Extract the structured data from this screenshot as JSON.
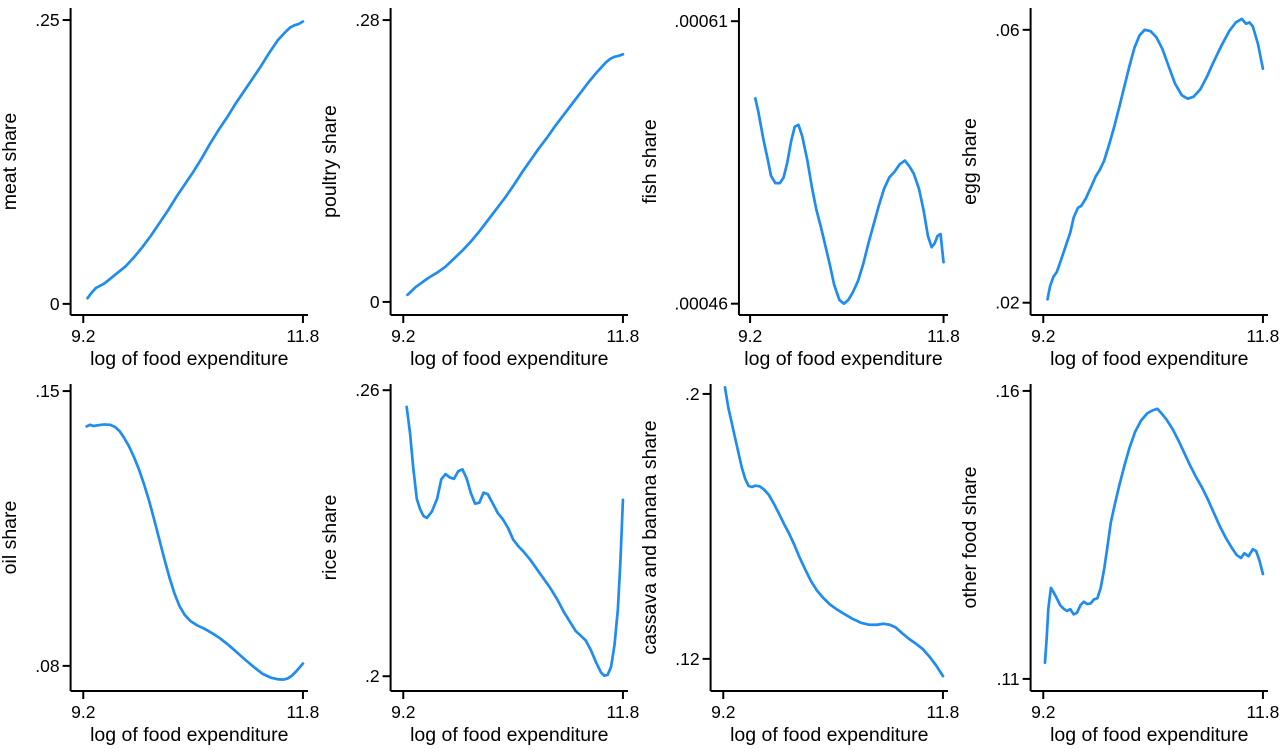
{
  "figure": {
    "background": "#ffffff",
    "columns": 4,
    "rows": 2
  },
  "style": {
    "line_color": "#1f8cf0",
    "axis_color": "#000000",
    "text_color": "#000000"
  },
  "chart_data": [
    {
      "type": "line",
      "title": "",
      "ylabel": "meat share",
      "xlabel": "log of food expenditure",
      "grid": false,
      "legend": "none",
      "xlim": [
        9.05,
        11.86
      ],
      "ylim": [
        -0.0098,
        0.2606
      ],
      "xticks": [
        {
          "v": 9.2,
          "label": "9.2"
        },
        {
          "v": 11.8,
          "label": "11.8"
        }
      ],
      "yticks": [
        {
          "v": 0,
          "label": "0"
        },
        {
          "v": 0.25,
          "label": ".25"
        }
      ],
      "x": [
        9.25,
        9.3,
        9.35,
        9.4,
        9.45,
        9.5,
        9.6,
        9.7,
        9.8,
        9.9,
        10.0,
        10.1,
        10.2,
        10.3,
        10.4,
        10.5,
        10.6,
        10.7,
        10.8,
        10.9,
        11.0,
        11.1,
        11.2,
        11.3,
        11.4,
        11.5,
        11.6,
        11.65,
        11.7,
        11.75,
        11.8
      ],
      "y": [
        0.005,
        0.01,
        0.014,
        0.016,
        0.018,
        0.021,
        0.027,
        0.033,
        0.041,
        0.05,
        0.06,
        0.071,
        0.082,
        0.094,
        0.105,
        0.116,
        0.128,
        0.141,
        0.153,
        0.164,
        0.176,
        0.187,
        0.198,
        0.209,
        0.221,
        0.232,
        0.24,
        0.2435,
        0.2455,
        0.2465,
        0.2487
      ]
    },
    {
      "type": "line",
      "title": "",
      "ylabel": "poultry share",
      "xlabel": "log of food expenditure",
      "grid": false,
      "legend": "none",
      "xlim": [
        9.05,
        11.86
      ],
      "ylim": [
        -0.013,
        0.292
      ],
      "xticks": [
        {
          "v": 9.2,
          "label": "9.2"
        },
        {
          "v": 11.8,
          "label": "11.8"
        }
      ],
      "yticks": [
        {
          "v": 0,
          "label": "0"
        },
        {
          "v": 0.28,
          "label": ".28"
        }
      ],
      "x": [
        9.25,
        9.3,
        9.35,
        9.4,
        9.45,
        9.5,
        9.6,
        9.7,
        9.8,
        9.9,
        10.0,
        10.1,
        10.2,
        10.3,
        10.4,
        10.5,
        10.6,
        10.7,
        10.8,
        10.9,
        11.0,
        11.1,
        11.2,
        11.3,
        11.4,
        11.5,
        11.6,
        11.65,
        11.7,
        11.75,
        11.8
      ],
      "y": [
        0.007,
        0.011,
        0.015,
        0.018,
        0.021,
        0.024,
        0.029,
        0.035,
        0.043,
        0.051,
        0.06,
        0.07,
        0.081,
        0.092,
        0.103,
        0.115,
        0.128,
        0.14,
        0.152,
        0.163,
        0.175,
        0.186,
        0.197,
        0.208,
        0.219,
        0.229,
        0.238,
        0.2415,
        0.2435,
        0.2445,
        0.246
      ]
    },
    {
      "type": "line",
      "title": "",
      "ylabel": "fish share",
      "xlabel": "log of food expenditure",
      "grid": false,
      "legend": "none",
      "xlim": [
        9.05,
        11.86
      ],
      "ylim": [
        0.000454,
        0.000617
      ],
      "xticks": [
        {
          "v": 9.2,
          "label": "9.2"
        },
        {
          "v": 11.8,
          "label": "11.8"
        }
      ],
      "yticks": [
        {
          "v": 0.00046,
          "label": ".00046"
        },
        {
          "v": 0.00061,
          "label": ".00061"
        }
      ],
      "x": [
        9.27,
        9.31,
        9.38,
        9.44,
        9.48,
        9.54,
        9.6,
        9.65,
        9.7,
        9.75,
        9.8,
        9.85,
        9.9,
        9.97,
        10.03,
        10.09,
        10.15,
        10.21,
        10.27,
        10.33,
        10.4,
        10.46,
        10.52,
        10.58,
        10.65,
        10.72,
        10.79,
        10.86,
        10.93,
        11.0,
        11.07,
        11.14,
        11.21,
        11.28,
        11.34,
        11.4,
        11.47,
        11.53,
        11.59,
        11.64,
        11.68,
        11.72,
        11.76,
        11.8
      ],
      "y": [
        0.000569,
        0.000562,
        0.000547,
        0.000536,
        0.000528,
        0.000524,
        0.000524,
        0.000527,
        0.000535,
        0.000546,
        0.000554,
        0.000555,
        0.000549,
        0.000536,
        0.000522,
        0.00051,
        0.000501,
        0.000491,
        0.000481,
        0.00047,
        0.000462,
        0.00046,
        0.000462,
        0.000466,
        0.000472,
        0.000481,
        0.000492,
        0.000502,
        0.000512,
        0.000521,
        0.000527,
        0.00053,
        0.000534,
        0.000536,
        0.000533,
        0.000529,
        0.000521,
        0.00051,
        0.000496,
        0.00049,
        0.000492,
        0.000496,
        0.000497,
        0.000482
      ]
    },
    {
      "type": "line",
      "title": "",
      "ylabel": "egg share",
      "xlabel": "log of food expenditure",
      "grid": false,
      "legend": "none",
      "xlim": [
        9.05,
        11.86
      ],
      "ylim": [
        0.0182,
        0.0632
      ],
      "xticks": [
        {
          "v": 9.2,
          "label": "9.2"
        },
        {
          "v": 11.8,
          "label": "11.8"
        }
      ],
      "yticks": [
        {
          "v": 0.02,
          "label": ".02"
        },
        {
          "v": 0.06,
          "label": ".06"
        }
      ],
      "x": [
        9.25,
        9.28,
        9.32,
        9.36,
        9.4,
        9.46,
        9.52,
        9.56,
        9.61,
        9.65,
        9.7,
        9.76,
        9.82,
        9.87,
        9.92,
        9.98,
        10.04,
        10.1,
        10.16,
        10.22,
        10.28,
        10.34,
        10.4,
        10.47,
        10.54,
        10.61,
        10.68,
        10.76,
        10.84,
        10.91,
        10.98,
        11.06,
        11.14,
        11.22,
        11.31,
        11.4,
        11.48,
        11.55,
        11.6,
        11.64,
        11.68,
        11.74,
        11.8
      ],
      "y": [
        0.0205,
        0.0224,
        0.0238,
        0.0245,
        0.0259,
        0.0281,
        0.0303,
        0.0325,
        0.0339,
        0.0342,
        0.0352,
        0.0368,
        0.0385,
        0.0395,
        0.0408,
        0.0432,
        0.0458,
        0.0487,
        0.0517,
        0.0547,
        0.0574,
        0.0592,
        0.06,
        0.0598,
        0.0589,
        0.0572,
        0.0548,
        0.0521,
        0.0504,
        0.0499,
        0.0502,
        0.0513,
        0.0532,
        0.0554,
        0.0577,
        0.0598,
        0.0611,
        0.0616,
        0.0609,
        0.0611,
        0.0605,
        0.058,
        0.0543
      ]
    },
    {
      "type": "line",
      "title": "",
      "ylabel": "oil share",
      "xlabel": "log of food expenditure",
      "grid": false,
      "legend": "none",
      "xlim": [
        9.05,
        11.86
      ],
      "ylim": [
        0.0736,
        0.1518
      ],
      "xticks": [
        {
          "v": 9.2,
          "label": "9.2"
        },
        {
          "v": 11.8,
          "label": "11.8"
        }
      ],
      "yticks": [
        {
          "v": 0.08,
          "label": ".08"
        },
        {
          "v": 0.15,
          "label": ".15"
        }
      ],
      "x": [
        9.24,
        9.28,
        9.32,
        9.38,
        9.45,
        9.52,
        9.58,
        9.63,
        9.68,
        9.74,
        9.8,
        9.86,
        9.92,
        9.98,
        10.04,
        10.1,
        10.16,
        10.22,
        10.28,
        10.34,
        10.4,
        10.47,
        10.55,
        10.63,
        10.72,
        10.82,
        10.92,
        11.02,
        11.12,
        11.22,
        11.32,
        11.42,
        11.5,
        11.57,
        11.62,
        11.67,
        11.72,
        11.76,
        11.8
      ],
      "y": [
        0.141,
        0.1414,
        0.1411,
        0.1413,
        0.1415,
        0.1414,
        0.1408,
        0.1398,
        0.1382,
        0.136,
        0.1332,
        0.13,
        0.1262,
        0.122,
        0.1172,
        0.1122,
        0.1072,
        0.1025,
        0.0984,
        0.0952,
        0.093,
        0.0914,
        0.0903,
        0.0895,
        0.0884,
        0.087,
        0.0853,
        0.0834,
        0.0815,
        0.0797,
        0.078,
        0.077,
        0.0766,
        0.0765,
        0.0768,
        0.0775,
        0.0786,
        0.0796,
        0.0806
      ]
    },
    {
      "type": "line",
      "title": "",
      "ylabel": "rice share",
      "xlabel": "log of food expenditure",
      "grid": false,
      "legend": "none",
      "xlim": [
        9.05,
        11.86
      ],
      "ylim": [
        0.1969,
        0.2613
      ],
      "xticks": [
        {
          "v": 9.2,
          "label": "9.2"
        },
        {
          "v": 11.8,
          "label": "11.8"
        }
      ],
      "yticks": [
        {
          "v": 0.2,
          "label": ".2"
        },
        {
          "v": 0.26,
          "label": ".26"
        }
      ],
      "x": [
        9.24,
        9.28,
        9.32,
        9.36,
        9.4,
        9.44,
        9.48,
        9.54,
        9.6,
        9.65,
        9.7,
        9.75,
        9.8,
        9.85,
        9.9,
        9.95,
        10.0,
        10.05,
        10.1,
        10.15,
        10.2,
        10.26,
        10.32,
        10.38,
        10.44,
        10.5,
        10.56,
        10.62,
        10.7,
        10.78,
        10.86,
        10.94,
        11.02,
        11.1,
        11.17,
        11.24,
        11.3,
        11.36,
        11.42,
        11.48,
        11.54,
        11.58,
        11.62,
        11.66,
        11.7,
        11.74,
        11.77,
        11.8
      ],
      "y": [
        0.2565,
        0.251,
        0.2434,
        0.2372,
        0.235,
        0.2336,
        0.2332,
        0.2346,
        0.2372,
        0.2413,
        0.2424,
        0.2417,
        0.2414,
        0.243,
        0.2434,
        0.2415,
        0.2384,
        0.2362,
        0.2364,
        0.2385,
        0.2382,
        0.2362,
        0.2342,
        0.2329,
        0.2311,
        0.2287,
        0.2273,
        0.2262,
        0.2245,
        0.2225,
        0.2205,
        0.2185,
        0.2162,
        0.2135,
        0.2115,
        0.2095,
        0.2085,
        0.2075,
        0.2055,
        0.203,
        0.2008,
        0.2001,
        0.2003,
        0.202,
        0.2065,
        0.214,
        0.224,
        0.237
      ]
    },
    {
      "type": "line",
      "title": "",
      "ylabel": "cassava and banana share",
      "xlabel": "log of food expenditure",
      "grid": false,
      "legend": "none",
      "xlim": [
        9.05,
        11.86
      ],
      "ylim": [
        0.1103,
        0.203
      ],
      "xticks": [
        {
          "v": 9.2,
          "label": "9.2"
        },
        {
          "v": 11.8,
          "label": "11.8"
        }
      ],
      "yticks": [
        {
          "v": 0.12,
          "label": ".12"
        },
        {
          "v": 0.2,
          "label": ".2"
        }
      ],
      "x": [
        9.22,
        9.26,
        9.3,
        9.34,
        9.38,
        9.42,
        9.46,
        9.5,
        9.54,
        9.58,
        9.63,
        9.68,
        9.74,
        9.8,
        9.86,
        9.92,
        9.98,
        10.04,
        10.1,
        10.17,
        10.24,
        10.31,
        10.38,
        10.46,
        10.54,
        10.63,
        10.73,
        10.83,
        10.93,
        11.02,
        11.1,
        11.17,
        11.24,
        11.32,
        11.4,
        11.48,
        11.56,
        11.64,
        11.72,
        11.8
      ],
      "y": [
        0.202,
        0.1958,
        0.1913,
        0.1867,
        0.1822,
        0.1777,
        0.1743,
        0.1722,
        0.1719,
        0.1723,
        0.1721,
        0.1712,
        0.1695,
        0.1668,
        0.1638,
        0.1607,
        0.1578,
        0.1545,
        0.1508,
        0.147,
        0.1434,
        0.1406,
        0.1385,
        0.1365,
        0.135,
        0.1336,
        0.1321,
        0.1309,
        0.1303,
        0.1303,
        0.1306,
        0.1303,
        0.1295,
        0.1277,
        0.126,
        0.1246,
        0.123,
        0.1207,
        0.118,
        0.1148
      ]
    },
    {
      "type": "line",
      "title": "",
      "ylabel": "other food share",
      "xlabel": "log of food expenditure",
      "grid": false,
      "legend": "none",
      "xlim": [
        9.05,
        11.86
      ],
      "ylim": [
        0.1079,
        0.1612
      ],
      "xticks": [
        {
          "v": 9.2,
          "label": "9.2"
        },
        {
          "v": 11.8,
          "label": "11.8"
        }
      ],
      "yticks": [
        {
          "v": 0.11,
          "label": ".11"
        },
        {
          "v": 0.16,
          "label": ".16"
        }
      ],
      "x": [
        9.22,
        9.24,
        9.26,
        9.29,
        9.32,
        9.36,
        9.4,
        9.44,
        9.48,
        9.52,
        9.56,
        9.6,
        9.64,
        9.68,
        9.72,
        9.76,
        9.8,
        9.84,
        9.88,
        9.92,
        9.96,
        10.0,
        10.05,
        10.1,
        10.16,
        10.22,
        10.29,
        10.36,
        10.43,
        10.49,
        10.55,
        10.6,
        10.66,
        10.73,
        10.8,
        10.87,
        10.94,
        11.01,
        11.08,
        11.15,
        11.22,
        11.29,
        11.36,
        11.43,
        11.49,
        11.54,
        11.58,
        11.63,
        11.68,
        11.72,
        11.76,
        11.8
      ],
      "y": [
        0.1128,
        0.117,
        0.1222,
        0.1258,
        0.1251,
        0.124,
        0.1228,
        0.1222,
        0.1218,
        0.1221,
        0.1212,
        0.1215,
        0.1228,
        0.1234,
        0.123,
        0.1231,
        0.1238,
        0.124,
        0.1258,
        0.129,
        0.133,
        0.1372,
        0.1405,
        0.1436,
        0.147,
        0.1501,
        0.153,
        0.1549,
        0.1561,
        0.1566,
        0.1569,
        0.1561,
        0.155,
        0.1534,
        0.1514,
        0.1492,
        0.147,
        0.145,
        0.1432,
        0.1411,
        0.1388,
        0.1365,
        0.1345,
        0.1328,
        0.1315,
        0.131,
        0.1318,
        0.1313,
        0.1325,
        0.1322,
        0.1305,
        0.1282
      ]
    }
  ]
}
